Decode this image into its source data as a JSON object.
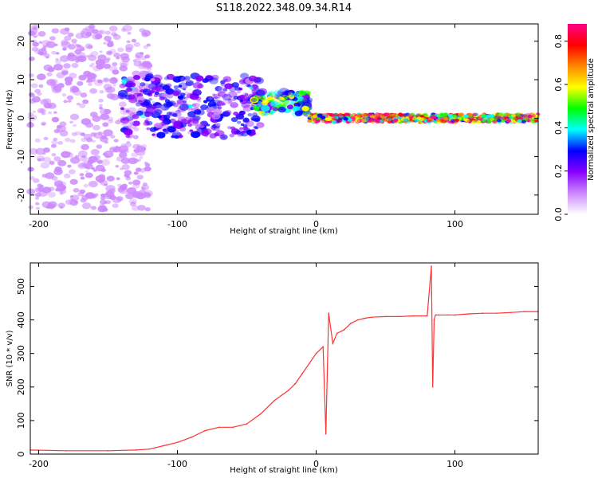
{
  "title": "S118.2022.348.09.34.R14",
  "chart_data": [
    {
      "type": "heatmap",
      "title": "S118.2022.348.09.34.R14",
      "xlabel": "Height of straight line (km)",
      "ylabel": "Frequency (Hz)",
      "xlim": [
        -206,
        160
      ],
      "ylim": [
        -25,
        24.5
      ],
      "xticks": [
        -200,
        -100,
        0,
        100
      ],
      "yticks": [
        -20,
        -10,
        0,
        10,
        20
      ],
      "colorbar": {
        "label": "Normalized spectral amplitude",
        "range": [
          0,
          0.88
        ],
        "ticks": [
          0.0,
          0.2,
          0.4,
          0.6,
          0.8
        ]
      },
      "features": [
        {
          "x": [
            -206,
            -120
          ],
          "frequency_center": 0,
          "frequency_spread": 24,
          "amplitude": 0.12
        },
        {
          "x": [
            -140,
            -40
          ],
          "frequency_center": 3,
          "frequency_spread": 8,
          "amplitude": 0.3
        },
        {
          "x": [
            -45,
            -5
          ],
          "frequency_center": 4,
          "frequency_spread": 3,
          "amplitude": 0.55
        },
        {
          "x": [
            -5,
            160
          ],
          "frequency_center": 0,
          "frequency_spread": 1,
          "amplitude": 0.85
        }
      ]
    },
    {
      "type": "line",
      "xlabel": "Height of straight line (km)",
      "ylabel": "SNR (10 * v/v)",
      "xlim": [
        -206,
        160
      ],
      "ylim": [
        0,
        570
      ],
      "xticks": [
        -200,
        -100,
        0,
        100
      ],
      "yticks": [
        0,
        100,
        200,
        300,
        400,
        500
      ],
      "series": [
        {
          "color": "#ff3333",
          "x": [
            -206,
            -180,
            -150,
            -130,
            -120,
            -110,
            -100,
            -90,
            -80,
            -70,
            -60,
            -50,
            -40,
            -30,
            -20,
            -15,
            -10,
            -5,
            0,
            5,
            7,
            9,
            12,
            15,
            20,
            25,
            30,
            35,
            40,
            50,
            60,
            70,
            80,
            83,
            84,
            85,
            86,
            88,
            95,
            100,
            110,
            120,
            130,
            140,
            150,
            160
          ],
          "y": [
            12,
            10,
            10,
            12,
            15,
            25,
            35,
            50,
            70,
            80,
            80,
            90,
            120,
            160,
            190,
            210,
            240,
            270,
            300,
            320,
            60,
            420,
            330,
            360,
            370,
            390,
            400,
            405,
            408,
            410,
            410,
            412,
            412,
            560,
            200,
            400,
            415,
            415,
            415,
            415,
            418,
            420,
            420,
            422,
            425,
            425
          ]
        }
      ]
    }
  ],
  "colors": {
    "snr_line": "#ff3333",
    "frame": "#000000",
    "rainbow": [
      "#ffffff",
      "#cc88ff",
      "#8800ff",
      "#0000ff",
      "#00ffff",
      "#00ff00",
      "#ffff00",
      "#ff8800",
      "#ff0000",
      "#ff0088"
    ]
  }
}
